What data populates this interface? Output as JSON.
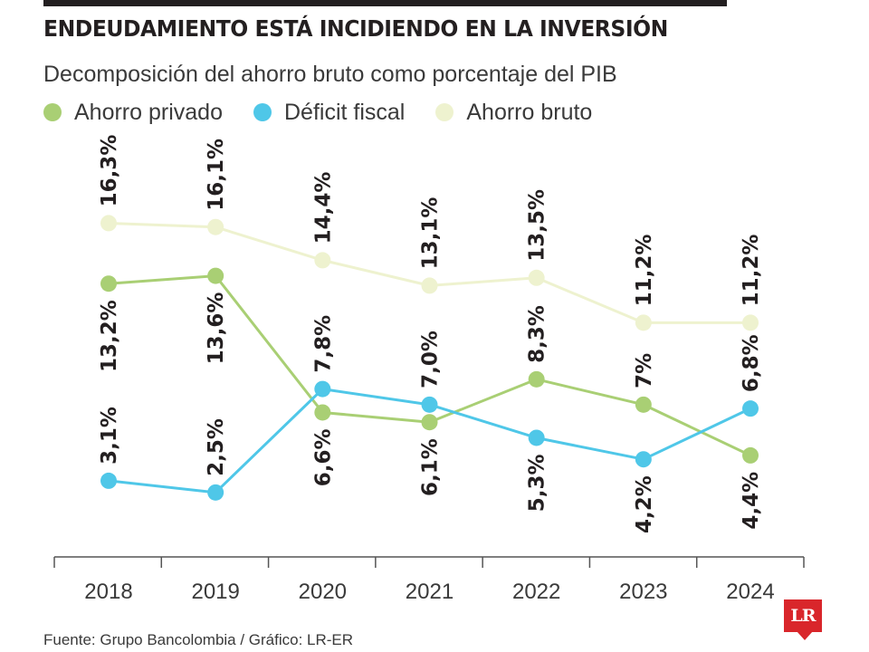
{
  "header": {
    "title": "ENDEUDAMIENTO ESTÁ INCIDIENDO EN LA INVERSIÓN",
    "subtitle": "Decomposición del ahorro bruto como porcentaje del PIB"
  },
  "legend": [
    {
      "label": "Ahorro privado",
      "color": "#a9cf74"
    },
    {
      "label": "Déficit fiscal",
      "color": "#4fc7e8"
    },
    {
      "label": "Ahorro bruto",
      "color": "#eef2cf"
    }
  ],
  "footer": {
    "source": "Fuente: Grupo Bancolombia / Gráfico: LR-ER",
    "logo": "LR"
  },
  "chart_data": {
    "type": "line",
    "categories": [
      "2018",
      "2019",
      "2020",
      "2021",
      "2022",
      "2023",
      "2024"
    ],
    "series": [
      {
        "name": "Ahorro bruto",
        "color": "#eef2cf",
        "values": [
          16.3,
          16.1,
          14.4,
          13.1,
          13.5,
          11.2,
          11.2
        ],
        "labels": [
          "16,3%",
          "16,1%",
          "14,4%",
          "13,1%",
          "13,5%",
          "11,2%",
          "11,2%"
        ]
      },
      {
        "name": "Ahorro privado",
        "color": "#a9cf74",
        "values": [
          13.2,
          13.6,
          6.6,
          6.1,
          8.3,
          7,
          4.4
        ],
        "labels": [
          "13,2%",
          "13,6%",
          "6,6%",
          "6,1%",
          "8,3%",
          "7%",
          "4,4%"
        ]
      },
      {
        "name": "Déficit fiscal",
        "color": "#4fc7e8",
        "values": [
          3.1,
          2.5,
          7.8,
          7.0,
          5.3,
          4.2,
          6.8
        ],
        "labels": [
          "3,1%",
          "2,5%",
          "7,8%",
          "7,0%",
          "5,3%",
          "4,2%",
          "6,8%"
        ]
      }
    ]
  }
}
